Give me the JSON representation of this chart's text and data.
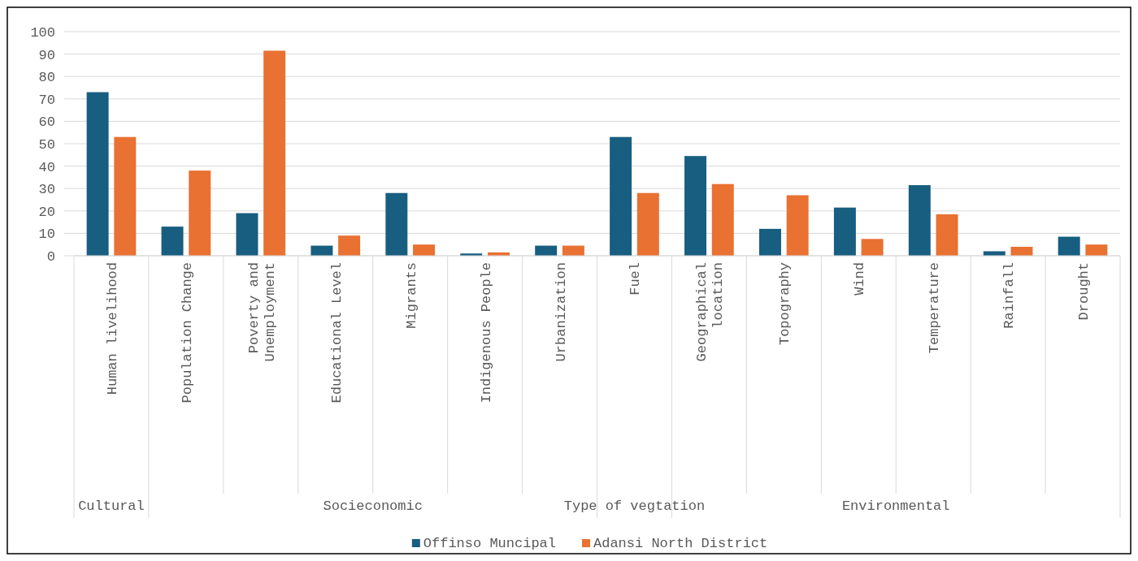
{
  "chart_data": {
    "type": "bar",
    "categories": [
      "Human livelihood",
      "Population Change",
      "Poverty and Unemployment",
      "Educational Level",
      "Migrants",
      "Indigenous People",
      "Urbanization",
      "Fuel",
      "Geographical location",
      "Topography",
      "Wind",
      "Temperature",
      "Rainfall",
      "Drought"
    ],
    "series": [
      {
        "name": "Offinso Muncipal",
        "color": "#175e80",
        "values": [
          73,
          13,
          19,
          4.5,
          28,
          1,
          4.5,
          53,
          44.5,
          12,
          21.5,
          31.5,
          2,
          8.5
        ]
      },
      {
        "name": "Adansi North District",
        "color": "#e97132",
        "values": [
          53,
          38,
          91.5,
          9,
          5,
          1.5,
          4.5,
          28,
          32,
          27,
          7.5,
          18.5,
          4,
          5
        ]
      }
    ],
    "annotations": [
      "Cultural",
      "Socieconomic",
      "Type of vegtation",
      "Environmental"
    ],
    "ylim": [
      0,
      100
    ],
    "yticks": [
      0,
      10,
      20,
      30,
      40,
      50,
      60,
      70,
      80,
      90,
      100
    ],
    "grid": "y",
    "legend": "bottom"
  }
}
